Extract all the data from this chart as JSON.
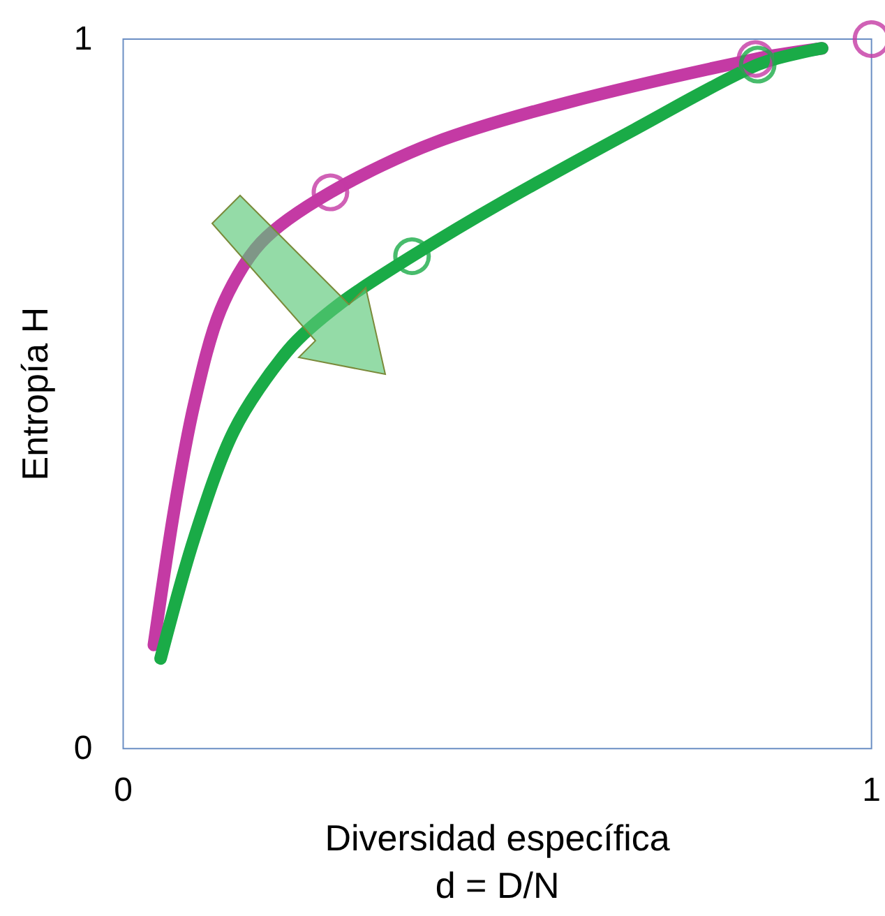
{
  "chart_data": {
    "type": "line",
    "xlabel": "Diversidad específica\nd = D/N",
    "ylabel": "Entropía H",
    "xlim": [
      0,
      1
    ],
    "ylim": [
      0,
      1
    ],
    "xticks": [
      0,
      1
    ],
    "yticks": [
      0,
      1
    ],
    "grid": false,
    "marker": "none",
    "line_style": "solid",
    "series": [
      {
        "color": "#c43aa4",
        "x": [
          0.041,
          0.068,
          0.095,
          0.13,
          0.184,
          0.277,
          0.416,
          0.595,
          0.845,
          0.934
        ],
        "values": [
          0.146,
          0.335,
          0.486,
          0.618,
          0.713,
          0.784,
          0.854,
          0.911,
          0.972,
          0.987
        ]
      },
      {
        "color": "#1aab47",
        "x": [
          0.05,
          0.095,
          0.148,
          0.22,
          0.291,
          0.386,
          0.505,
          0.684,
          0.848,
          0.934
        ],
        "values": [
          0.127,
          0.297,
          0.448,
          0.561,
          0.628,
          0.694,
          0.769,
          0.873,
          0.964,
          0.987
        ]
      },
      {
        "type": "scatter",
        "marker": "circle",
        "color": "#c43aa4",
        "x": [
          0.277,
          0.845,
          1
        ],
        "values": [
          0.784,
          0.972,
          1
        ]
      },
      {
        "type": "scatter",
        "marker": "circle",
        "color": "#1aab47",
        "x": [
          0.386,
          0.848
        ],
        "values": [
          0.694,
          0.964
        ]
      }
    ]
  }
}
